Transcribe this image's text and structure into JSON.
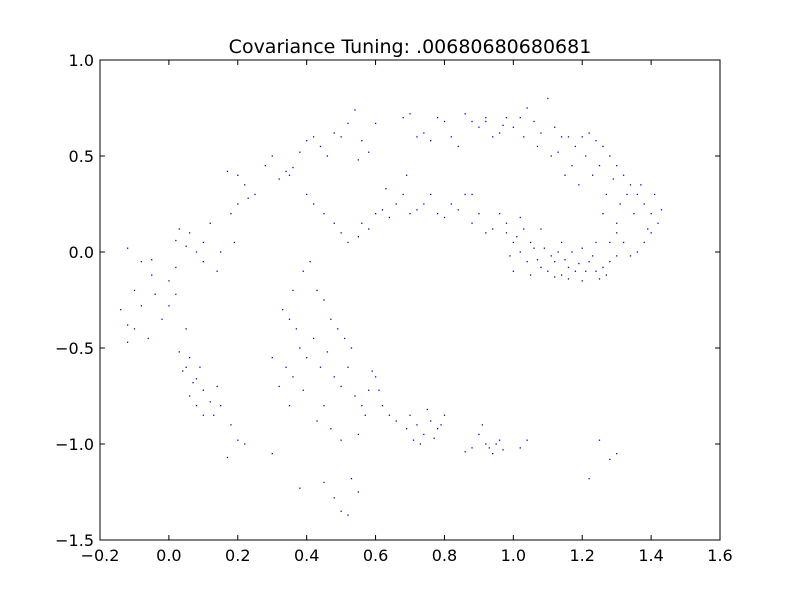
{
  "chart_data": {
    "type": "scatter",
    "title": "Covariance Tuning: .00680680680681",
    "xlabel": "",
    "ylabel": "",
    "xlim": [
      -0.2,
      1.6
    ],
    "ylim": [
      -1.5,
      1.0
    ],
    "xticks": [
      -0.2,
      0.0,
      0.2,
      0.4,
      0.6,
      0.8,
      1.0,
      1.2,
      1.4,
      1.6
    ],
    "xtick_labels": [
      "−0.2",
      "0.0",
      "0.2",
      "0.4",
      "0.6",
      "0.8",
      "1.0",
      "1.2",
      "1.4",
      "1.6"
    ],
    "yticks": [
      -1.5,
      -1.0,
      -0.5,
      0.0,
      0.5,
      1.0
    ],
    "ytick_labels": [
      "−1.5",
      "−1.0",
      "−0.5",
      "0.0",
      "0.5",
      "1.0"
    ],
    "grid": false,
    "marker_color": "#0000ff",
    "series": [
      {
        "points": [
          [
            -0.12,
            0.02
          ],
          [
            -0.08,
            -0.05
          ],
          [
            -0.05,
            -0.12
          ],
          [
            -0.1,
            -0.2
          ],
          [
            -0.14,
            -0.3
          ],
          [
            -0.1,
            -0.4
          ],
          [
            -0.06,
            -0.45
          ],
          [
            -0.12,
            -0.47
          ],
          [
            -0.02,
            -0.35
          ],
          [
            -0.04,
            -0.22
          ],
          [
            0.0,
            -0.15
          ],
          [
            0.02,
            -0.08
          ],
          [
            0.05,
            0.03
          ],
          [
            0.03,
            0.12
          ],
          [
            -0.05,
            -0.04
          ],
          [
            -0.08,
            -0.28
          ],
          [
            -0.12,
            -0.38
          ],
          [
            0.0,
            -0.28
          ],
          [
            0.02,
            -0.22
          ],
          [
            0.05,
            -0.4
          ],
          [
            0.03,
            -0.52
          ],
          [
            0.05,
            -0.6
          ],
          [
            0.07,
            -0.68
          ],
          [
            0.06,
            -0.75
          ],
          [
            0.08,
            -0.8
          ],
          [
            0.1,
            -0.72
          ],
          [
            0.12,
            -0.78
          ],
          [
            0.13,
            -0.85
          ],
          [
            0.09,
            -0.6
          ],
          [
            0.06,
            -0.55
          ],
          [
            0.04,
            -0.62
          ],
          [
            0.15,
            -0.8
          ],
          [
            0.18,
            -0.9
          ],
          [
            0.2,
            -0.98
          ],
          [
            0.17,
            -1.07
          ],
          [
            0.22,
            -1.0
          ],
          [
            0.3,
            -1.05
          ],
          [
            0.1,
            -0.85
          ],
          [
            0.08,
            -0.66
          ],
          [
            0.14,
            -0.7
          ],
          [
            0.06,
            0.1
          ],
          [
            0.1,
            0.05
          ],
          [
            0.12,
            0.15
          ],
          [
            0.15,
            0.0
          ],
          [
            0.1,
            -0.05
          ],
          [
            0.18,
            0.2
          ],
          [
            0.2,
            0.25
          ],
          [
            0.17,
            0.42
          ],
          [
            0.2,
            0.4
          ],
          [
            0.22,
            0.35
          ],
          [
            0.25,
            0.3
          ],
          [
            0.23,
            0.28
          ],
          [
            0.19,
            0.05
          ],
          [
            0.14,
            -0.1
          ],
          [
            0.08,
            0.0
          ],
          [
            0.02,
            0.06
          ],
          [
            0.28,
            0.45
          ],
          [
            0.3,
            0.5
          ],
          [
            0.32,
            0.38
          ],
          [
            0.34,
            0.42
          ],
          [
            0.36,
            0.44
          ],
          [
            0.38,
            0.52
          ],
          [
            0.4,
            0.58
          ],
          [
            0.42,
            0.6
          ],
          [
            0.44,
            0.55
          ],
          [
            0.46,
            0.5
          ],
          [
            0.48,
            0.62
          ],
          [
            0.5,
            0.6
          ],
          [
            0.52,
            0.67
          ],
          [
            0.54,
            0.74
          ],
          [
            0.56,
            0.58
          ],
          [
            0.58,
            0.52
          ],
          [
            0.6,
            0.67
          ],
          [
            0.55,
            0.48
          ],
          [
            0.35,
            0.4
          ],
          [
            0.4,
            0.3
          ],
          [
            0.42,
            0.25
          ],
          [
            0.45,
            0.2
          ],
          [
            0.48,
            0.15
          ],
          [
            0.5,
            0.1
          ],
          [
            0.52,
            0.05
          ],
          [
            0.55,
            0.08
          ],
          [
            0.58,
            0.12
          ],
          [
            0.6,
            0.2
          ],
          [
            0.62,
            0.22
          ],
          [
            0.64,
            0.18
          ],
          [
            0.66,
            0.25
          ],
          [
            0.68,
            0.3
          ],
          [
            0.7,
            0.2
          ],
          [
            0.72,
            0.22
          ],
          [
            0.74,
            0.25
          ],
          [
            0.76,
            0.3
          ],
          [
            0.78,
            0.2
          ],
          [
            0.8,
            0.18
          ],
          [
            0.82,
            0.25
          ],
          [
            0.84,
            0.22
          ],
          [
            0.86,
            0.3
          ],
          [
            0.88,
            0.15
          ],
          [
            0.9,
            0.2
          ],
          [
            0.92,
            0.1
          ],
          [
            0.94,
            0.12
          ],
          [
            0.96,
            0.2
          ],
          [
            0.98,
            0.1
          ],
          [
            0.56,
            0.15
          ],
          [
            0.63,
            0.33
          ],
          [
            0.69,
            0.4
          ],
          [
            0.88,
            0.3
          ],
          [
            0.68,
            0.7
          ],
          [
            0.7,
            0.72
          ],
          [
            0.72,
            0.6
          ],
          [
            0.74,
            0.62
          ],
          [
            0.76,
            0.58
          ],
          [
            0.78,
            0.7
          ],
          [
            0.8,
            0.68
          ],
          [
            0.82,
            0.6
          ],
          [
            0.84,
            0.55
          ],
          [
            0.86,
            0.72
          ],
          [
            0.88,
            0.68
          ],
          [
            0.9,
            0.65
          ],
          [
            0.92,
            0.7
          ],
          [
            0.94,
            0.6
          ],
          [
            0.96,
            0.62
          ],
          [
            0.98,
            0.7
          ],
          [
            1.0,
            0.65
          ],
          [
            1.02,
            0.7
          ],
          [
            1.04,
            0.75
          ],
          [
            1.06,
            0.68
          ],
          [
            1.08,
            0.62
          ],
          [
            1.1,
            0.8
          ],
          [
            1.12,
            0.65
          ],
          [
            1.14,
            0.6
          ],
          [
            1.16,
            0.6
          ],
          [
            1.18,
            0.55
          ],
          [
            1.2,
            0.6
          ],
          [
            1.22,
            0.62
          ],
          [
            1.24,
            0.58
          ],
          [
            1.26,
            0.55
          ],
          [
            1.28,
            0.5
          ],
          [
            1.3,
            0.45
          ],
          [
            1.32,
            0.4
          ],
          [
            1.34,
            0.35
          ],
          [
            1.36,
            0.3
          ],
          [
            1.38,
            0.25
          ],
          [
            1.4,
            0.2
          ],
          [
            1.42,
            0.15
          ],
          [
            1.4,
            0.1
          ],
          [
            1.38,
            0.05
          ],
          [
            1.36,
            0.0
          ],
          [
            1.34,
            -0.02
          ],
          [
            1.32,
            0.05
          ],
          [
            1.3,
            0.1
          ],
          [
            1.28,
            0.05
          ],
          [
            0.92,
            0.68
          ],
          [
            0.97,
            0.66
          ],
          [
            1.03,
            0.6
          ],
          [
            1.07,
            0.55
          ],
          [
            1.13,
            0.52
          ],
          [
            1.17,
            0.45
          ],
          [
            1.21,
            0.5
          ],
          [
            1.25,
            0.45
          ],
          [
            1.29,
            0.38
          ],
          [
            1.33,
            0.3
          ],
          [
            1.37,
            0.35
          ],
          [
            1.41,
            0.3
          ],
          [
            1.35,
            0.2
          ],
          [
            1.39,
            0.12
          ],
          [
            1.43,
            0.22
          ],
          [
            1.31,
            0.25
          ],
          [
            1.27,
            0.3
          ],
          [
            1.23,
            0.4
          ],
          [
            1.19,
            0.35
          ],
          [
            1.15,
            0.4
          ],
          [
            1.11,
            0.5
          ],
          [
            1.26,
            0.2
          ],
          [
            1.3,
            0.15
          ],
          [
            1.0,
            0.05
          ],
          [
            1.02,
            0.0
          ],
          [
            1.04,
            -0.05
          ],
          [
            1.06,
            0.02
          ],
          [
            1.08,
            -0.08
          ],
          [
            1.1,
            -0.1
          ],
          [
            1.12,
            -0.05
          ],
          [
            1.14,
            -0.12
          ],
          [
            1.16,
            -0.08
          ],
          [
            1.18,
            -0.1
          ],
          [
            1.2,
            -0.15
          ],
          [
            1.22,
            -0.05
          ],
          [
            1.24,
            -0.1
          ],
          [
            1.26,
            -0.08
          ],
          [
            1.28,
            -0.05
          ],
          [
            1.3,
            -0.02
          ],
          [
            1.01,
            0.08
          ],
          [
            1.03,
            0.12
          ],
          [
            1.05,
            0.05
          ],
          [
            0.99,
            -0.02
          ],
          [
            1.07,
            -0.04
          ],
          [
            1.09,
            0.02
          ],
          [
            1.11,
            -0.02
          ],
          [
            1.13,
            0.0
          ],
          [
            1.15,
            -0.04
          ],
          [
            1.17,
            0.0
          ],
          [
            1.19,
            -0.06
          ],
          [
            1.21,
            -0.1
          ],
          [
            1.23,
            -0.02
          ],
          [
            1.25,
            -0.14
          ],
          [
            1.27,
            -0.12
          ],
          [
            1.05,
            -0.12
          ],
          [
            1.0,
            -0.1
          ],
          [
            0.98,
            0.15
          ],
          [
            1.02,
            0.18
          ],
          [
            1.08,
            0.12
          ],
          [
            1.14,
            0.05
          ],
          [
            1.2,
            0.02
          ],
          [
            1.24,
            0.05
          ],
          [
            1.16,
            -0.14
          ],
          [
            1.12,
            -0.13
          ],
          [
            0.33,
            -0.3
          ],
          [
            0.35,
            -0.35
          ],
          [
            0.37,
            -0.4
          ],
          [
            0.38,
            -0.5
          ],
          [
            0.4,
            -0.55
          ],
          [
            0.42,
            -0.45
          ],
          [
            0.44,
            -0.6
          ],
          [
            0.46,
            -0.52
          ],
          [
            0.48,
            -0.65
          ],
          [
            0.5,
            -0.7
          ],
          [
            0.52,
            -0.6
          ],
          [
            0.54,
            -0.75
          ],
          [
            0.56,
            -0.8
          ],
          [
            0.58,
            -0.72
          ],
          [
            0.6,
            -0.65
          ],
          [
            0.62,
            -0.8
          ],
          [
            0.64,
            -0.85
          ],
          [
            0.66,
            -0.88
          ],
          [
            0.36,
            -0.2
          ],
          [
            0.39,
            -0.1
          ],
          [
            0.41,
            -0.05
          ],
          [
            0.43,
            -0.2
          ],
          [
            0.45,
            -0.25
          ],
          [
            0.47,
            -0.35
          ],
          [
            0.49,
            -0.4
          ],
          [
            0.51,
            -0.45
          ],
          [
            0.53,
            -0.5
          ],
          [
            0.34,
            -0.6
          ],
          [
            0.36,
            -0.65
          ],
          [
            0.3,
            -0.55
          ],
          [
            0.32,
            -0.7
          ],
          [
            0.39,
            -0.72
          ],
          [
            0.45,
            -0.8
          ],
          [
            0.43,
            -0.88
          ],
          [
            0.47,
            -0.92
          ],
          [
            0.5,
            -0.98
          ],
          [
            0.55,
            -0.95
          ],
          [
            0.57,
            -0.85
          ],
          [
            0.61,
            -0.72
          ],
          [
            0.59,
            -0.62
          ],
          [
            0.35,
            -0.8
          ],
          [
            0.7,
            -0.85
          ],
          [
            0.72,
            -0.9
          ],
          [
            0.74,
            -0.95
          ],
          [
            0.76,
            -0.88
          ],
          [
            0.78,
            -0.92
          ],
          [
            0.8,
            -0.85
          ],
          [
            0.71,
            -0.98
          ],
          [
            0.73,
            -1.0
          ],
          [
            0.75,
            -0.82
          ],
          [
            0.77,
            -0.97
          ],
          [
            0.79,
            -0.9
          ],
          [
            0.69,
            -0.92
          ],
          [
            0.9,
            -0.95
          ],
          [
            0.92,
            -1.0
          ],
          [
            0.94,
            -1.05
          ],
          [
            0.96,
            -0.98
          ],
          [
            0.91,
            -0.9
          ],
          [
            0.93,
            -1.02
          ],
          [
            0.95,
            -1.0
          ],
          [
            0.88,
            -1.02
          ],
          [
            0.86,
            -1.04
          ],
          [
            0.97,
            -1.03
          ],
          [
            1.02,
            -1.02
          ],
          [
            1.04,
            -0.98
          ],
          [
            0.45,
            -1.2
          ],
          [
            0.48,
            -1.28
          ],
          [
            0.5,
            -1.35
          ],
          [
            0.52,
            -1.37
          ],
          [
            0.55,
            -1.25
          ],
          [
            0.53,
            -1.18
          ],
          [
            0.38,
            -1.23
          ],
          [
            1.22,
            -1.18
          ],
          [
            1.28,
            -1.08
          ],
          [
            1.3,
            -1.05
          ],
          [
            1.25,
            -0.98
          ]
        ]
      }
    ]
  }
}
